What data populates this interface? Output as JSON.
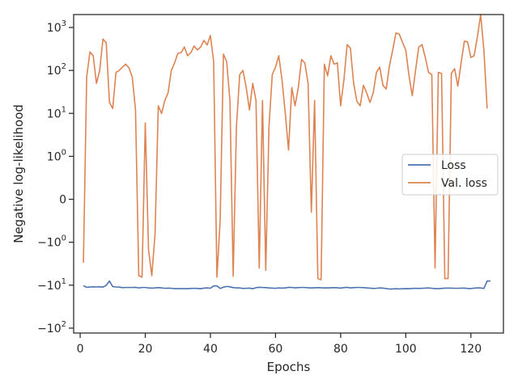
{
  "chart_data": {
    "type": "line",
    "xlabel": "Epochs",
    "ylabel": "Negative log-likelihood",
    "yscale": "symlog",
    "symlog_linthresh": 1,
    "xlim": [
      -2,
      130
    ],
    "ylim": [
      -130,
      2000
    ],
    "x_ticks": [
      0,
      20,
      40,
      60,
      80,
      100,
      120
    ],
    "x_tick_labels": [
      "0",
      "20",
      "40",
      "60",
      "80",
      "100",
      "120"
    ],
    "y_ticks": [
      1000,
      100,
      10,
      1,
      0,
      -1,
      -10,
      -100
    ],
    "y_tick_labels": [
      "10^3",
      "10^2",
      "10^1",
      "10^0",
      "0",
      "−10^0",
      "−10^1",
      "−10^2"
    ],
    "grid": false,
    "legend_position": "center-right",
    "series": [
      {
        "name": "Loss",
        "color": "#4c72b0",
        "points": [
          [
            1,
            -10.3
          ],
          [
            2,
            -11.2
          ],
          [
            3,
            -11
          ],
          [
            4,
            -10.9
          ],
          [
            5,
            -11
          ],
          [
            6,
            -10.9
          ],
          [
            7,
            -11.1
          ],
          [
            8,
            -10.1
          ],
          [
            9,
            -8
          ],
          [
            10,
            -10.8
          ],
          [
            11,
            -11
          ],
          [
            12,
            -11.1
          ],
          [
            13,
            -11.4
          ],
          [
            14,
            -11.3
          ],
          [
            15,
            -11.3
          ],
          [
            16,
            -11.3
          ],
          [
            17,
            -11.2
          ],
          [
            18,
            -11.6
          ],
          [
            19,
            -11.3
          ],
          [
            20,
            -11.3
          ],
          [
            21,
            -11.6
          ],
          [
            22,
            -11.7
          ],
          [
            23,
            -11.6
          ],
          [
            24,
            -11.4
          ],
          [
            25,
            -11.6
          ],
          [
            26,
            -11.8
          ],
          [
            27,
            -11.7
          ],
          [
            28,
            -11.8
          ],
          [
            29,
            -12
          ],
          [
            30,
            -12
          ],
          [
            31,
            -12
          ],
          [
            32,
            -12
          ],
          [
            33,
            -12.1
          ],
          [
            34,
            -11.9
          ],
          [
            35,
            -11.8
          ],
          [
            36,
            -11.9
          ],
          [
            37,
            -12.1
          ],
          [
            38,
            -11.7
          ],
          [
            39,
            -11.6
          ],
          [
            40,
            -11.8
          ],
          [
            41,
            -10.4
          ],
          [
            42,
            -10.4
          ],
          [
            43,
            -11.9
          ],
          [
            44,
            -11.1
          ],
          [
            45,
            -10.7
          ],
          [
            46,
            -10.9
          ],
          [
            47,
            -11.4
          ],
          [
            48,
            -11.6
          ],
          [
            49,
            -11.6
          ],
          [
            50,
            -11.9
          ],
          [
            51,
            -11.8
          ],
          [
            52,
            -11.7
          ],
          [
            53,
            -12.1
          ],
          [
            54,
            -11.4
          ],
          [
            55,
            -11.2
          ],
          [
            56,
            -11.3
          ],
          [
            57,
            -11.4
          ],
          [
            58,
            -11.6
          ],
          [
            59,
            -11.7
          ],
          [
            60,
            -11.8
          ],
          [
            61,
            -11.6
          ],
          [
            62,
            -11.7
          ],
          [
            63,
            -11.6
          ],
          [
            64,
            -11.2
          ],
          [
            65,
            -11.3
          ],
          [
            66,
            -11.5
          ],
          [
            67,
            -11.4
          ],
          [
            68,
            -11.3
          ],
          [
            69,
            -11.3
          ],
          [
            70,
            -11.5
          ],
          [
            71,
            -11.6
          ],
          [
            72,
            -11.5
          ],
          [
            73,
            -11.4
          ],
          [
            74,
            -11.5
          ],
          [
            75,
            -11.6
          ],
          [
            76,
            -11.6
          ],
          [
            77,
            -11.5
          ],
          [
            78,
            -11.4
          ],
          [
            79,
            -11.5
          ],
          [
            80,
            -11.7
          ],
          [
            81,
            -11.4
          ],
          [
            82,
            -11.2
          ],
          [
            83,
            -11.6
          ],
          [
            84,
            -11.4
          ],
          [
            85,
            -11.3
          ],
          [
            86,
            -11.3
          ],
          [
            87,
            -11.4
          ],
          [
            88,
            -11.6
          ],
          [
            89,
            -11.7
          ],
          [
            90,
            -11.9
          ],
          [
            91,
            -11.8
          ],
          [
            92,
            -11.6
          ],
          [
            93,
            -11.7
          ],
          [
            94,
            -12
          ],
          [
            95,
            -12.3
          ],
          [
            96,
            -12.2
          ],
          [
            97,
            -12.1
          ],
          [
            98,
            -12.2
          ],
          [
            99,
            -12.1
          ],
          [
            100,
            -12
          ],
          [
            101,
            -12.1
          ],
          [
            102,
            -11.9
          ],
          [
            103,
            -11.8
          ],
          [
            104,
            -11.9
          ],
          [
            105,
            -11.8
          ],
          [
            106,
            -11.7
          ],
          [
            107,
            -11.6
          ],
          [
            108,
            -11.8
          ],
          [
            109,
            -12
          ],
          [
            110,
            -12
          ],
          [
            111,
            -11.9
          ],
          [
            112,
            -11.7
          ],
          [
            113,
            -11.7
          ],
          [
            114,
            -11.7
          ],
          [
            115,
            -11.8
          ],
          [
            116,
            -11.8
          ],
          [
            117,
            -11.7
          ],
          [
            118,
            -11.7
          ],
          [
            119,
            -11.9
          ],
          [
            120,
            -12
          ],
          [
            121,
            -11.7
          ],
          [
            122,
            -11.6
          ],
          [
            123,
            -11.6
          ],
          [
            124,
            -11.9
          ],
          [
            125,
            -8
          ],
          [
            126,
            -8
          ]
        ]
      },
      {
        "name": "Val. loss",
        "color": "#dd8452",
        "points": [
          [
            1,
            -3
          ],
          [
            2,
            70
          ],
          [
            3,
            270
          ],
          [
            4,
            220
          ],
          [
            5,
            50
          ],
          [
            6,
            100
          ],
          [
            7,
            540
          ],
          [
            8,
            440
          ],
          [
            9,
            18
          ],
          [
            10,
            13
          ],
          [
            11,
            90
          ],
          [
            12,
            100
          ],
          [
            13,
            120
          ],
          [
            14,
            140
          ],
          [
            15,
            115
          ],
          [
            16,
            70
          ],
          [
            17,
            12
          ],
          [
            18,
            -6
          ],
          [
            19,
            -6.5
          ],
          [
            20,
            6
          ],
          [
            21,
            -1.5
          ],
          [
            22,
            -6
          ],
          [
            23,
            -0.8
          ],
          [
            24,
            15
          ],
          [
            25,
            10
          ],
          [
            26,
            20
          ],
          [
            27,
            30
          ],
          [
            28,
            100
          ],
          [
            29,
            150
          ],
          [
            30,
            250
          ],
          [
            31,
            260
          ],
          [
            32,
            350
          ],
          [
            33,
            220
          ],
          [
            34,
            260
          ],
          [
            35,
            370
          ],
          [
            36,
            300
          ],
          [
            37,
            350
          ],
          [
            38,
            500
          ],
          [
            39,
            390
          ],
          [
            40,
            650
          ],
          [
            41,
            160
          ],
          [
            42,
            -6.5
          ],
          [
            43,
            -0.5
          ],
          [
            44,
            240
          ],
          [
            45,
            160
          ],
          [
            46,
            20
          ],
          [
            47,
            -6.2
          ],
          [
            48,
            5
          ],
          [
            49,
            80
          ],
          [
            50,
            100
          ],
          [
            51,
            40
          ],
          [
            52,
            12
          ],
          [
            53,
            50
          ],
          [
            54,
            20
          ],
          [
            55,
            -4
          ],
          [
            56,
            20
          ],
          [
            57,
            -4.5
          ],
          [
            58,
            5
          ],
          [
            59,
            80
          ],
          [
            60,
            120
          ],
          [
            61,
            220
          ],
          [
            62,
            60
          ],
          [
            63,
            10
          ],
          [
            64,
            1.4
          ],
          [
            65,
            40
          ],
          [
            66,
            15
          ],
          [
            67,
            40
          ],
          [
            68,
            180
          ],
          [
            69,
            150
          ],
          [
            70,
            50
          ],
          [
            71,
            -0.3
          ],
          [
            72,
            20
          ],
          [
            73,
            -7
          ],
          [
            74,
            -7.5
          ],
          [
            75,
            140
          ],
          [
            76,
            75
          ],
          [
            77,
            220
          ],
          [
            78,
            140
          ],
          [
            79,
            150
          ],
          [
            80,
            15
          ],
          [
            81,
            60
          ],
          [
            82,
            400
          ],
          [
            83,
            330
          ],
          [
            84,
            50
          ],
          [
            85,
            19
          ],
          [
            86,
            15
          ],
          [
            87,
            45
          ],
          [
            88,
            30
          ],
          [
            89,
            18
          ],
          [
            90,
            30
          ],
          [
            91,
            90
          ],
          [
            92,
            120
          ],
          [
            93,
            45
          ],
          [
            94,
            37
          ],
          [
            95,
            130
          ],
          [
            96,
            300
          ],
          [
            97,
            750
          ],
          [
            98,
            700
          ],
          [
            99,
            450
          ],
          [
            100,
            300
          ],
          [
            101,
            75
          ],
          [
            102,
            26
          ],
          [
            103,
            100
          ],
          [
            104,
            350
          ],
          [
            105,
            400
          ],
          [
            106,
            200
          ],
          [
            107,
            90
          ],
          [
            108,
            80
          ],
          [
            109,
            -4
          ],
          [
            110,
            90
          ],
          [
            111,
            85
          ],
          [
            112,
            -7
          ],
          [
            113,
            -7
          ],
          [
            114,
            85
          ],
          [
            115,
            110
          ],
          [
            116,
            43
          ],
          [
            117,
            150
          ],
          [
            118,
            480
          ],
          [
            119,
            460
          ],
          [
            120,
            200
          ],
          [
            121,
            220
          ],
          [
            122,
            600
          ],
          [
            123,
            2000
          ],
          [
            124,
            300
          ],
          [
            125,
            13
          ]
        ]
      }
    ]
  }
}
